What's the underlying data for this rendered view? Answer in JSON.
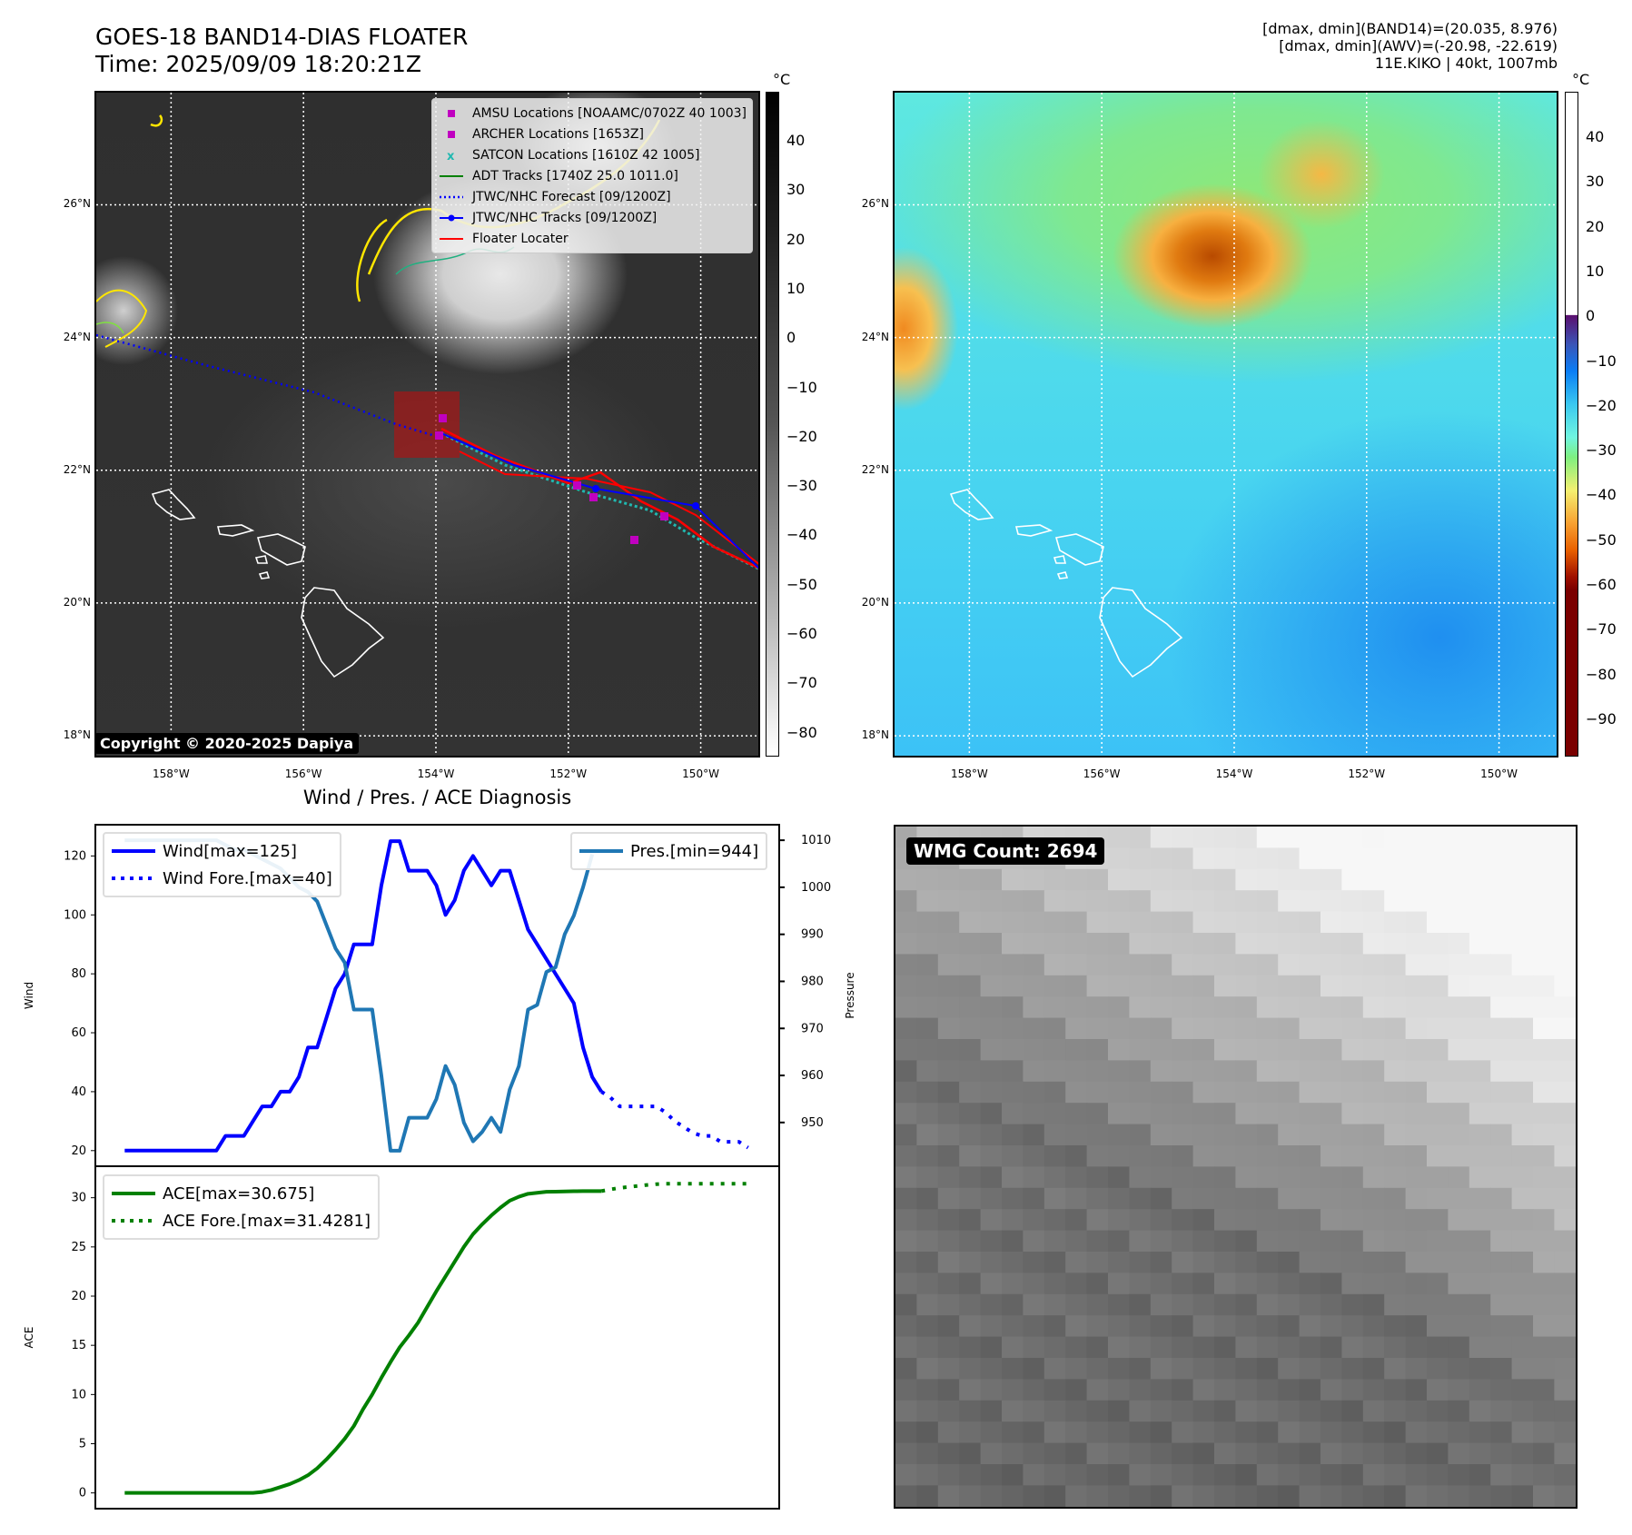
{
  "header": {
    "title_line1": "GOES-18 BAND14-DIAS FLOATER",
    "title_line2": "Time: 2025/09/09 18:20:21Z",
    "info_line1": "[dmax, dmin](BAND14)=(20.035, 8.976)",
    "info_line2": "[dmax, dmin](AWV)=(-20.98, -22.619)",
    "info_line3": "11E.KIKO | 40kt, 1007mb"
  },
  "map": {
    "lon_range": [
      -159.13,
      -149.13
    ],
    "lat_range": [
      17.7,
      27.69
    ],
    "lon_ticks": [
      {
        "v": -158,
        "label": "158°W"
      },
      {
        "v": -156,
        "label": "156°W"
      },
      {
        "v": -154,
        "label": "154°W"
      },
      {
        "v": -152,
        "label": "152°W"
      },
      {
        "v": -150,
        "label": "150°W"
      }
    ],
    "lat_ticks": [
      {
        "v": 26,
        "label": "26°N"
      },
      {
        "v": 24,
        "label": "24°N"
      },
      {
        "v": 22,
        "label": "22°N"
      },
      {
        "v": 20,
        "label": "20°N"
      },
      {
        "v": 18,
        "label": "18°N"
      }
    ],
    "copyright": "Copyright © 2020-2025 Dapiya",
    "legend": [
      {
        "label": "AMSU Locations [NOAAMC/0702Z 40 1003]",
        "symbol": "square",
        "color": "#c000c0"
      },
      {
        "label": "ARCHER Locations [1653Z]",
        "symbol": "square",
        "color": "#c000c0"
      },
      {
        "label": "SATCON Locations [1610Z 42 1005]",
        "symbol": "x",
        "color": "#20b8b0"
      },
      {
        "label": "ADT Tracks [1740Z 25.0 1011.0]",
        "symbol": "line",
        "color": "#008000"
      },
      {
        "label": "JTWC/NHC Forecast [09/1200Z]",
        "symbol": "dotted",
        "color": "#0000ff"
      },
      {
        "label": "JTWC/NHC Tracks [09/1200Z]",
        "symbol": "line-dot",
        "color": "#0000ff"
      },
      {
        "label": "Floater Locater",
        "symbol": "line",
        "color": "#ff0000"
      }
    ]
  },
  "colorbar_left": {
    "unit": "°C",
    "ticks": [
      "40",
      "30",
      "20",
      "10",
      "0",
      "−10",
      "−20",
      "−30",
      "−40",
      "−50",
      "−60",
      "−70",
      "−80"
    ]
  },
  "colorbar_right": {
    "unit": "°C",
    "ticks": [
      "40",
      "30",
      "20",
      "10",
      "0",
      "−10",
      "−20",
      "−30",
      "−40",
      "−50",
      "−60",
      "−70",
      "−80",
      "−90"
    ]
  },
  "wmg": {
    "label": "WMG Count: 2694"
  },
  "chart_data": {
    "type": "line",
    "title": "Wind / Pres. / ACE Diagnosis",
    "xlim": [
      -3.2,
      71.4
    ],
    "panels": [
      {
        "name": "wind-pressure",
        "ylabel": "Wind",
        "ylim": [
          14.7,
          130.6
        ],
        "yticks": [
          20,
          40,
          60,
          80,
          100,
          120
        ],
        "y2label": "Pressure",
        "y2lim": [
          940.7,
          1013.3
        ],
        "y2ticks": [
          950,
          960,
          970,
          980,
          990,
          1000,
          1010
        ],
        "series": [
          {
            "name": "Wind[max=125]",
            "axis": "left",
            "style": "solid",
            "color": "#0000ff",
            "values": [
              20,
              20,
              20,
              20,
              20,
              20,
              20,
              20,
              20,
              20,
              20,
              25,
              25,
              25,
              30,
              35,
              35,
              40,
              40,
              45,
              55,
              55,
              65,
              75,
              80,
              90,
              90,
              90,
              110,
              125,
              125,
              115,
              115,
              115,
              110,
              100,
              105,
              115,
              120,
              115,
              110,
              115,
              115,
              105,
              95,
              90,
              85,
              80,
              75,
              70,
              55,
              45,
              40
            ],
            "x_start": 0
          },
          {
            "name": "Wind Fore.[max=40]",
            "axis": "left",
            "style": "dotted",
            "color": "#0000ff",
            "values": [
              40,
              38,
              35,
              35,
              35,
              35,
              35,
              33,
              30,
              28,
              26,
              25,
              25,
              23,
              23,
              23,
              21
            ],
            "x_start": 52
          },
          {
            "name": "Pres.[min=944]",
            "axis": "right",
            "style": "solid",
            "color": "#1f77b4",
            "values": [
              1010,
              1010,
              1010,
              1010,
              1010,
              1010,
              1010,
              1010,
              1010,
              1010,
              1010,
              1009,
              1008,
              1008,
              1007,
              1006,
              1005,
              1004,
              1002,
              1000,
              999,
              997,
              992,
              987,
              984,
              974,
              974,
              974,
              960,
              944,
              944,
              951,
              951,
              951,
              955,
              962,
              958,
              950,
              946,
              948,
              951,
              948,
              957,
              962,
              974,
              975,
              982,
              983,
              990,
              994,
              1000,
              1007
            ],
            "x_start": 0
          }
        ],
        "legend_left": [
          "Wind[max=125]",
          "Wind Fore.[max=40]"
        ],
        "legend_right": [
          "Pres.[min=944]"
        ]
      },
      {
        "name": "ace",
        "ylabel": "ACE",
        "ylim": [
          -1.6,
          33.2
        ],
        "yticks": [
          0,
          5,
          10,
          15,
          20,
          25,
          30
        ],
        "series": [
          {
            "name": "ACE[max=30.675]",
            "style": "solid",
            "color": "#008000",
            "values": [
              0,
              0,
              0,
              0,
              0,
              0,
              0,
              0,
              0,
              0,
              0,
              0,
              0,
              0,
              0,
              0.1,
              0.3,
              0.6,
              0.9,
              1.3,
              1.8,
              2.5,
              3.4,
              4.4,
              5.5,
              6.8,
              8.5,
              10,
              11.7,
              13.3,
              14.8,
              16,
              17.3,
              18.9,
              20.5,
              22,
              23.5,
              25,
              26.3,
              27.3,
              28.2,
              29,
              29.7,
              30.1,
              30.4,
              30.5,
              30.6,
              30.62,
              30.64,
              30.66,
              30.67,
              30.675,
              30.675
            ],
            "x_start": 0
          },
          {
            "name": "ACE Fore.[max=31.4281]",
            "style": "dotted",
            "color": "#008000",
            "values": [
              30.675,
              30.85,
              31.0,
              31.1,
              31.2,
              31.3,
              31.38,
              31.42,
              31.4281,
              31.4281,
              31.4281,
              31.4281,
              31.4281,
              31.4281,
              31.4281,
              31.4281,
              31.4281
            ],
            "x_start": 52
          }
        ]
      }
    ]
  }
}
